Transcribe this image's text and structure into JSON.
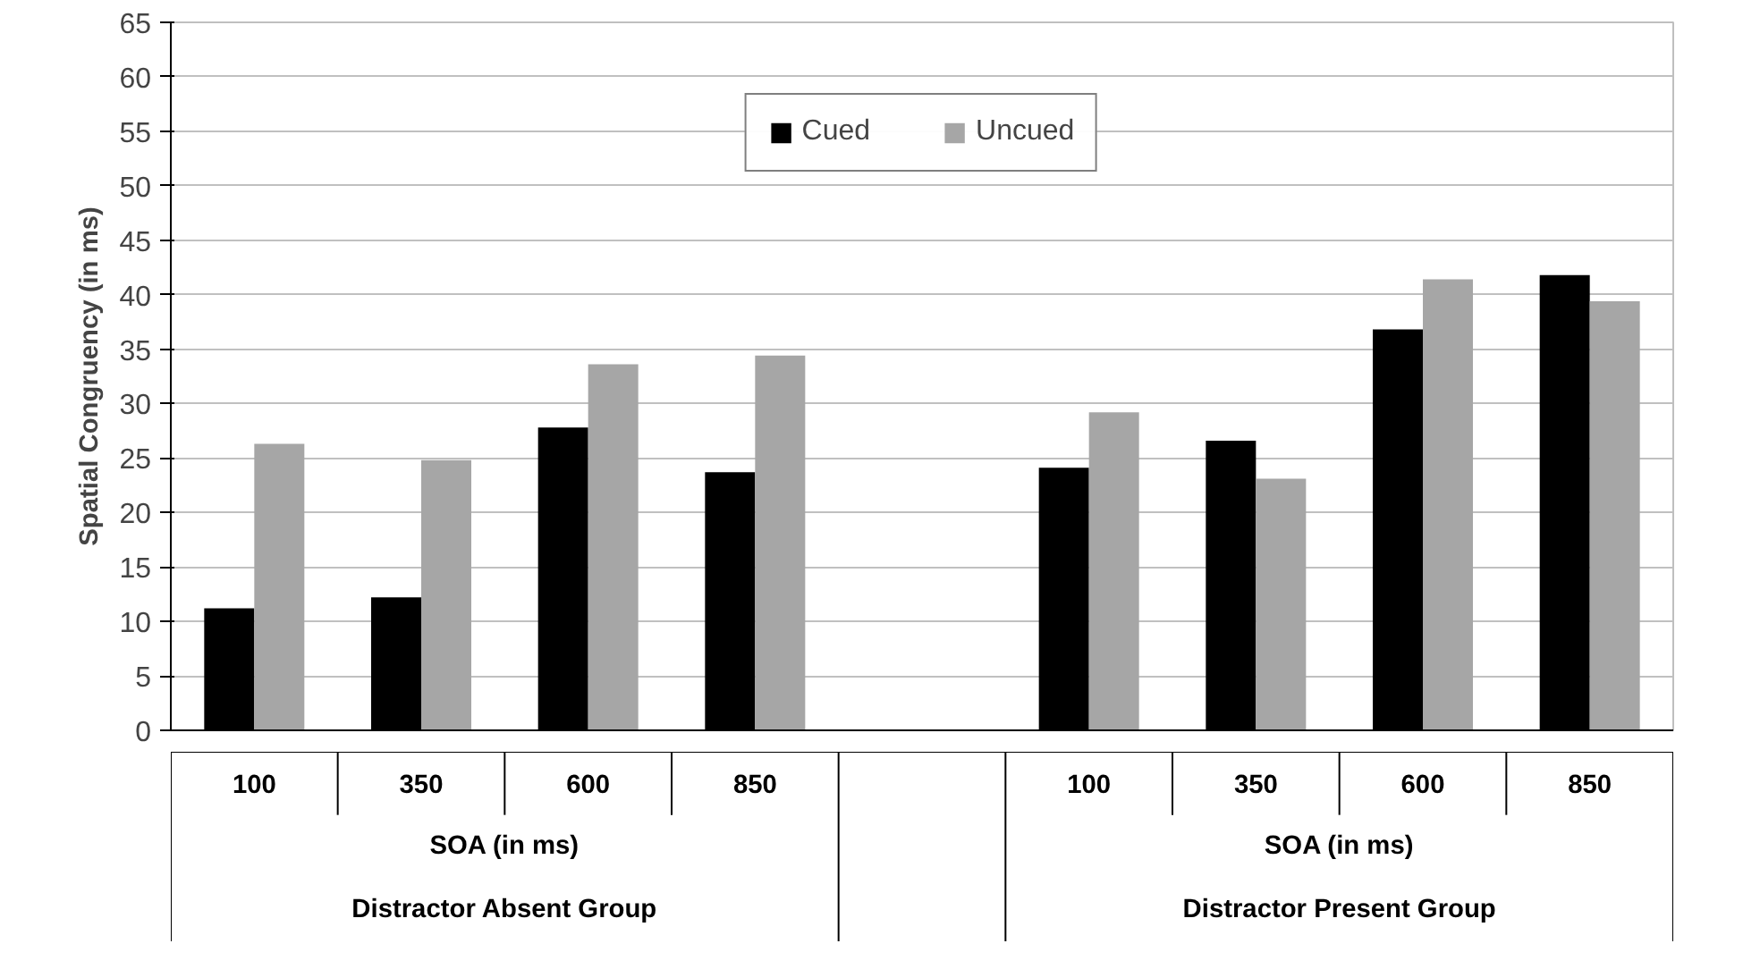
{
  "chart_data": {
    "type": "bar",
    "ylabel": "Spatial Congruency (in ms)",
    "categories": [
      "100",
      "350",
      "600",
      "850",
      null,
      "100",
      "350",
      "600",
      "850"
    ],
    "series": [
      {
        "name": "Cued",
        "color": "#000000",
        "values": [
          11.2,
          12.2,
          27.8,
          23.7,
          null,
          24.1,
          26.6,
          36.8,
          41.8
        ]
      },
      {
        "name": "Uncued",
        "color": "#a6a6a6",
        "values": [
          26.3,
          24.8,
          33.6,
          34.4,
          null,
          29.2,
          23.1,
          41.4,
          39.4
        ]
      }
    ],
    "ylim": [
      0,
      65
    ],
    "yticks": [
      0,
      5,
      10,
      15,
      20,
      25,
      30,
      35,
      40,
      45,
      50,
      55,
      60,
      65
    ],
    "grid": "y",
    "legend": "top",
    "annotations": [
      "SOA (in ms)",
      "Distractor Absent Group",
      "SOA (in ms)",
      "Distractor Present Group"
    ]
  }
}
